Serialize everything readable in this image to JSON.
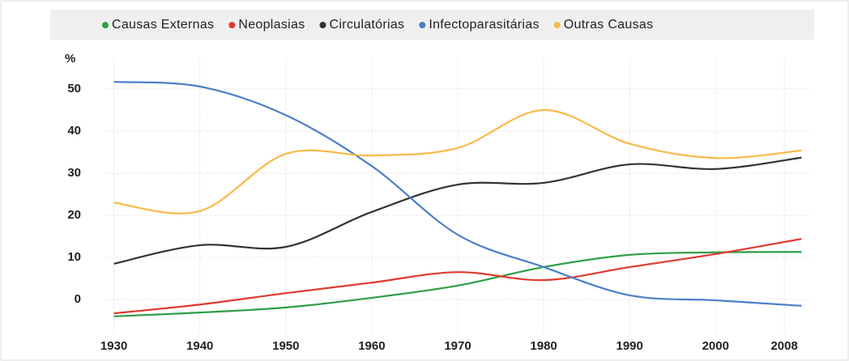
{
  "chart_data": {
    "type": "line",
    "ylabel": "%",
    "x": [
      1930,
      1940,
      1950,
      1960,
      1970,
      1980,
      1990,
      2000,
      2010
    ],
    "series": [
      {
        "name": "Causas Externas",
        "color": "#2e9e44",
        "values": [
          -4,
          -3.1,
          -1.9,
          0.4,
          3.3,
          7.7,
          10.6,
          11.2,
          11.3
        ]
      },
      {
        "name": "Neoplasias",
        "color": "#e03a2f",
        "values": [
          -3.3,
          -1.2,
          1.5,
          4,
          6.5,
          4.6,
          7.7,
          10.8,
          14.4
        ]
      },
      {
        "name": "Circulatórias",
        "color": "#333333",
        "values": [
          8.5,
          12.9,
          12.5,
          20.8,
          27.3,
          27.7,
          32.1,
          31,
          33.7
        ]
      },
      {
        "name": "Infectoparasitárias",
        "color": "#4a7fc9",
        "values": [
          51.7,
          50.6,
          43.8,
          31.7,
          15.4,
          7.7,
          1,
          -0.2,
          -1.5
        ]
      },
      {
        "name": "Outras Causas",
        "color": "#f9b949",
        "values": [
          23,
          21,
          34.6,
          34.2,
          36,
          45,
          37,
          33.6,
          35.4
        ]
      }
    ],
    "xlim": [
      1929,
      2011
    ],
    "xticks": [
      1930,
      1940,
      1950,
      1960,
      1970,
      1980,
      1990,
      2000,
      2008
    ],
    "ylim": [
      -6,
      57
    ],
    "yticks": [
      0,
      10,
      20,
      30,
      40,
      50
    ],
    "grid": true,
    "legend": "top"
  }
}
